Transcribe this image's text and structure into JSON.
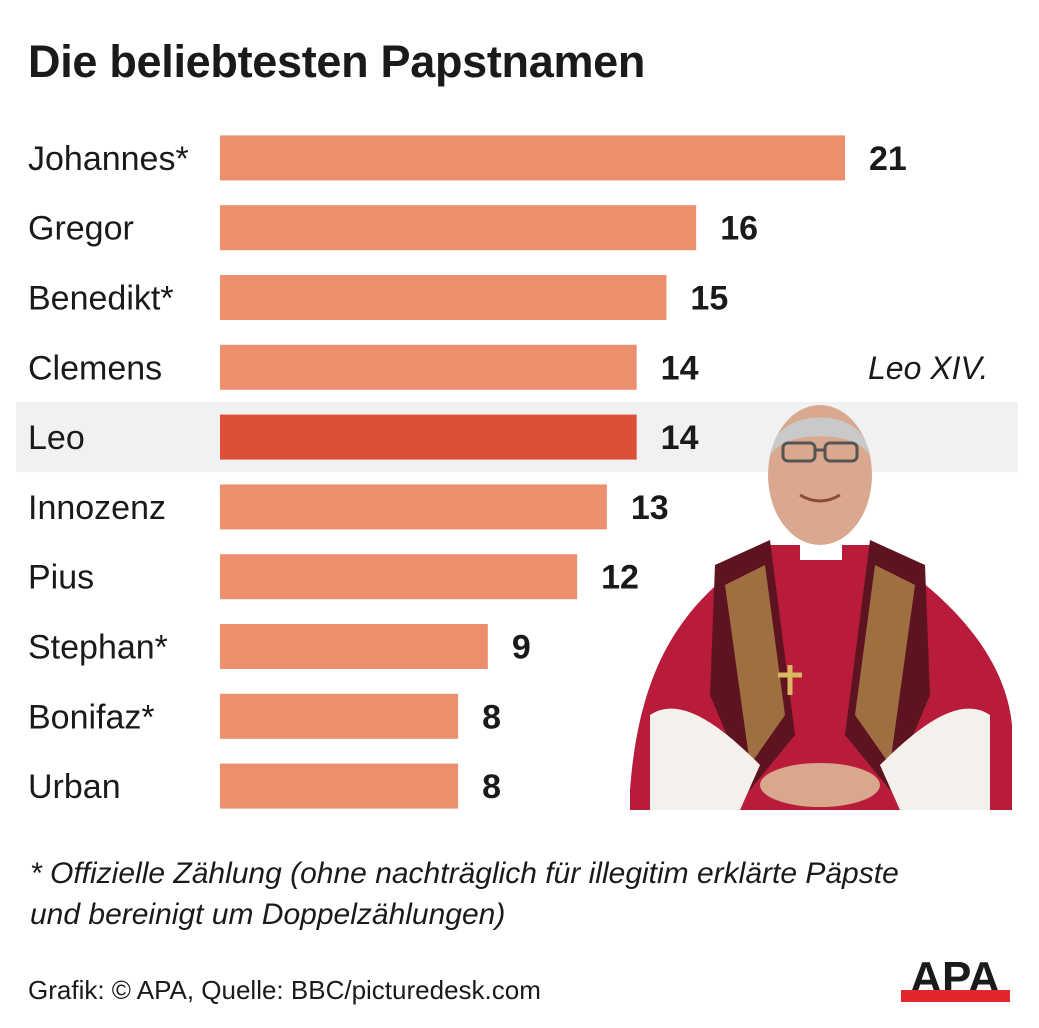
{
  "chart_data": {
    "type": "bar",
    "orientation": "horizontal",
    "title": "Die beliebtesten Papstnamen",
    "categories": [
      "Johannes*",
      "Gregor",
      "Benedikt*",
      "Clemens",
      "Leo",
      "Innozenz",
      "Pius",
      "Stephan*",
      "Bonifaz*",
      "Urban"
    ],
    "values": [
      21,
      16,
      15,
      14,
      14,
      13,
      12,
      9,
      8,
      8
    ],
    "highlight": "Leo",
    "xlim": [
      0,
      21
    ],
    "grid": false,
    "colors": {
      "bar": "#ec8f6d",
      "highlight_bar": "#db4f37",
      "highlight_band": "#f0f1f2"
    }
  },
  "photo_caption": "Leo XIV.",
  "footnote": "* Offizielle Zählung (ohne nachträglich für illegitim erklärte Päpste und bereinigt um Doppelzählungen)",
  "source": "Grafik: © APA, Quelle: BBC/picturedesk.com",
  "logo": {
    "text": "APA",
    "colors": {
      "text": "#1a1a1a",
      "bar": "#e3262c"
    }
  }
}
